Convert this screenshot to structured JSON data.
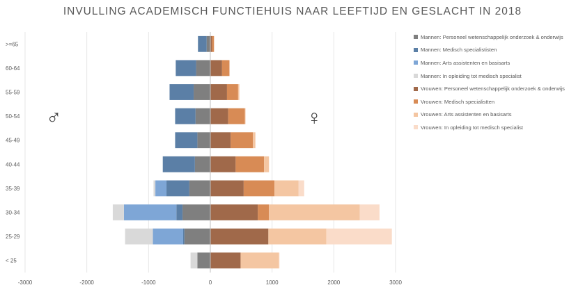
{
  "chart_data": {
    "type": "bar",
    "orientation": "horizontal",
    "stacked": true,
    "title": "INVULLING ACADEMISCH FUNCTIEHUIS NAAR LEEFTIJD EN GESLACHT IN 2018",
    "categories": [
      ">=65",
      "60-64",
      "55-59",
      "50-54",
      "45-49",
      "40-44",
      "35-39",
      "30-34",
      "25-29",
      "< 25"
    ],
    "xlim": [
      -3000,
      3000
    ],
    "x_ticks": [
      -3000,
      -2000,
      -1000,
      0,
      1000,
      2000,
      3000
    ],
    "grid": true,
    "legend_position": "right",
    "series": [
      {
        "name": "Mannen: Personeel wetenschappelijk onderzoek & onderwijs",
        "color": "#7f7f7f",
        "values": [
          -60,
          -230,
          -270,
          -240,
          -210,
          -250,
          -340,
          -450,
          -420,
          -210
        ]
      },
      {
        "name": "Mannen: Medisch specialististen",
        "color": "#5b7fa6",
        "values": [
          -140,
          -330,
          -390,
          -330,
          -360,
          -520,
          -370,
          -100,
          -20,
          0
        ]
      },
      {
        "name": "Mannen: Arts assistenten en basisarts",
        "color": "#7ea6d6",
        "values": [
          0,
          0,
          0,
          0,
          0,
          0,
          -180,
          -850,
          -490,
          0
        ]
      },
      {
        "name": "Mannen: In opleiding tot medisch specialist",
        "color": "#d9d9d9",
        "values": [
          0,
          0,
          0,
          0,
          0,
          0,
          -30,
          -180,
          -450,
          -110
        ]
      },
      {
        "name": "Vrouwen: Personeel wetenschappelijk onderzoek & onderwijs",
        "color": "#a0694a",
        "values": [
          30,
          190,
          270,
          290,
          330,
          410,
          540,
          770,
          940,
          490
        ]
      },
      {
        "name": "Vrouwen: Medisch specialistten",
        "color": "#d88b55",
        "values": [
          30,
          120,
          180,
          270,
          360,
          460,
          500,
          180,
          0,
          0
        ]
      },
      {
        "name": "Vrouwen: Arts assistenten en basisarts",
        "color": "#f4c6a2",
        "values": [
          0,
          0,
          20,
          10,
          40,
          80,
          390,
          1470,
          940,
          620
        ]
      },
      {
        "name": "Vrouwen: In opleiding tot medisch specialist",
        "color": "#fadcc9",
        "values": [
          0,
          0,
          0,
          0,
          0,
          0,
          90,
          320,
          1060,
          10
        ]
      }
    ]
  },
  "symbols": {
    "male": "♂",
    "female": "♀"
  }
}
